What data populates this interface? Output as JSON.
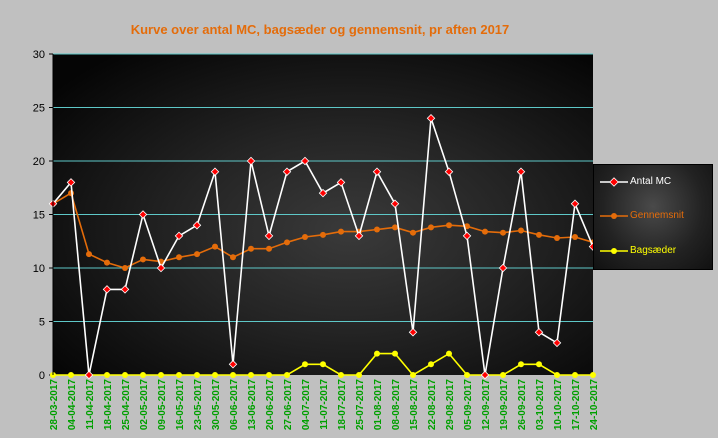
{
  "chart_data": {
    "type": "line",
    "title": "Kurve over antal MC, bagsæder og gennemsnit, pr aften 2017",
    "xlabel": "",
    "ylabel": "",
    "ylim": [
      0,
      30
    ],
    "yticks": [
      0,
      5,
      10,
      15,
      20,
      25,
      30
    ],
    "grid": true,
    "legend_position": "right",
    "categories": [
      "28-03-2017",
      "04-04-2017",
      "11-04-2017",
      "18-04-2017",
      "25-04-2017",
      "02-05-2017",
      "09-05-2017",
      "16-05-2017",
      "23-05-2017",
      "30-05-2017",
      "06-06-2017",
      "13-06-2017",
      "20-06-2017",
      "27-06-2017",
      "04-07-2017",
      "11-07-2017",
      "18-07-2017",
      "25-07-2017",
      "01-08-2017",
      "08-08-2017",
      "15-08-2017",
      "22-08-2017",
      "29-08-2017",
      "05-09-2017",
      "12-09-2017",
      "19-09-2017",
      "26-09-2017",
      "03-10-2017",
      "10-10-2017",
      "17-10-2017",
      "24-10-2017"
    ],
    "series": [
      {
        "name": "Antal MC",
        "color": "#ffffff",
        "marker": "#ff0000",
        "values": [
          16,
          18,
          0,
          8,
          8,
          15,
          10,
          13,
          14,
          19,
          1,
          20,
          13,
          19,
          20,
          17,
          18,
          13,
          19,
          16,
          4,
          24,
          19,
          13,
          0,
          10,
          19,
          4,
          3,
          16,
          12
        ]
      },
      {
        "name": "Gennemsnit",
        "color": "#e46c0a",
        "marker": "#e46c0a",
        "values": [
          16,
          17,
          11.3,
          10.5,
          10,
          10.8,
          10.6,
          11,
          11.3,
          12,
          11,
          11.8,
          11.8,
          12.4,
          12.9,
          13.1,
          13.4,
          13.4,
          13.6,
          13.8,
          13.3,
          13.8,
          14,
          13.9,
          13.4,
          13.3,
          13.5,
          13.1,
          12.8,
          12.9,
          12.4
        ]
      },
      {
        "name": "Bagsæder",
        "color": "#ffff00",
        "marker": "#ffff00",
        "values": [
          0,
          0,
          0,
          0,
          0,
          0,
          0,
          0,
          0,
          0,
          0,
          0,
          0,
          0,
          1,
          1,
          0,
          0,
          2,
          2,
          0,
          1,
          2,
          0,
          0,
          0,
          1,
          1,
          0,
          0,
          0
        ]
      }
    ]
  }
}
